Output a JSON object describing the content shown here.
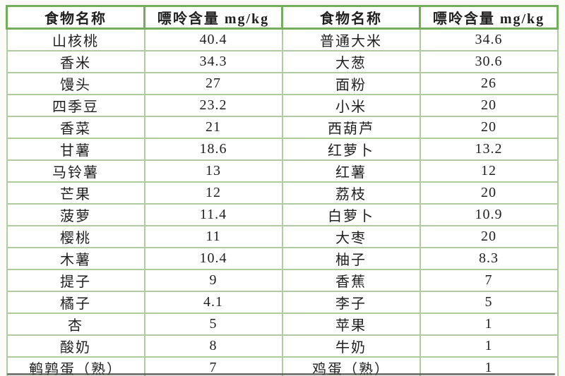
{
  "table": {
    "title_semantic": "food-purine-content-table",
    "headers": [
      "食物名称",
      "嘌呤含量 mg/kg",
      "食物名称",
      "嘌呤含量 mg/kg"
    ],
    "unit": "mg/kg",
    "rows": [
      [
        "山核桃",
        "40.4",
        "普通大米",
        "34.6"
      ],
      [
        "香米",
        "34.3",
        "大葱",
        "30.6"
      ],
      [
        "馒头",
        "27",
        "面粉",
        "26"
      ],
      [
        "四季豆",
        "23.2",
        "小米",
        "20"
      ],
      [
        "香菜",
        "21",
        "西葫芦",
        "20"
      ],
      [
        "甘薯",
        "18.6",
        "红萝卜",
        "13.2"
      ],
      [
        "马铃薯",
        "13",
        "红薯",
        "12"
      ],
      [
        "芒果",
        "12",
        "荔枝",
        "20"
      ],
      [
        "菠萝",
        "11.4",
        "白萝卜",
        "10.9"
      ],
      [
        "樱桃",
        "11",
        "大枣",
        "20"
      ],
      [
        "木薯",
        "10.4",
        "柚子",
        "8.3"
      ],
      [
        "提子",
        "9",
        "香蕉",
        "7"
      ],
      [
        "橘子",
        "4.1",
        "李子",
        "5"
      ],
      [
        "杏",
        "5",
        "苹果",
        "1"
      ],
      [
        "酸奶",
        "8",
        "牛奶",
        "1"
      ],
      [
        "鹌鹑蛋（熟）",
        "7",
        "鸡蛋（熟）",
        "1"
      ]
    ]
  },
  "colors": {
    "header_border": "#74ad5c",
    "grid_border": "#b0cba0",
    "text": "#1f1f1f",
    "bottom_line": "#565a50",
    "page_bg": "#fbfbf8"
  }
}
